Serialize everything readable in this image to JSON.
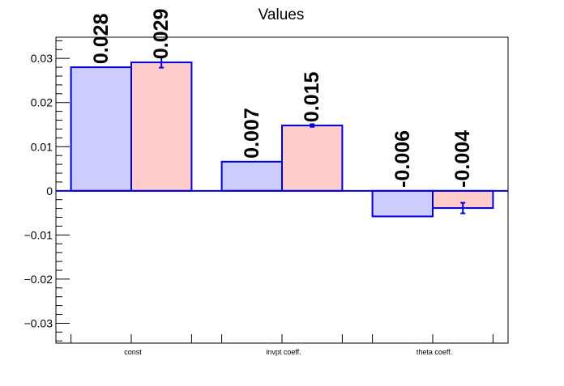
{
  "chart_data": {
    "type": "bar",
    "title": "Values",
    "categories": [
      "const",
      "invpt coeff.",
      "theta coeff."
    ],
    "series": [
      {
        "values": [
          0.028,
          0.0066,
          -0.0058
        ],
        "labels": [
          "0.028",
          "0.007",
          "-0.006"
        ],
        "color": "#ccccff"
      },
      {
        "values": [
          0.0291,
          0.0148,
          -0.0039
        ],
        "errors": [
          0.0012,
          0.0003,
          0.0012
        ],
        "labels": [
          "0.029",
          "0.015",
          "-0.004"
        ],
        "color": "#ffcccc"
      }
    ],
    "ylim": [
      -0.0345,
      0.0348
    ],
    "yticks": [
      0.03,
      0.02,
      0.01,
      0,
      -0.01,
      -0.02,
      -0.03
    ],
    "ytick_labels": [
      "0.03",
      "0.02",
      "0.01",
      "0",
      "−0.01",
      "−0.02",
      "−0.03"
    ],
    "xlabel": "",
    "ylabel": "",
    "grid": false,
    "legend": "none",
    "edge_color": "#0000dd"
  }
}
